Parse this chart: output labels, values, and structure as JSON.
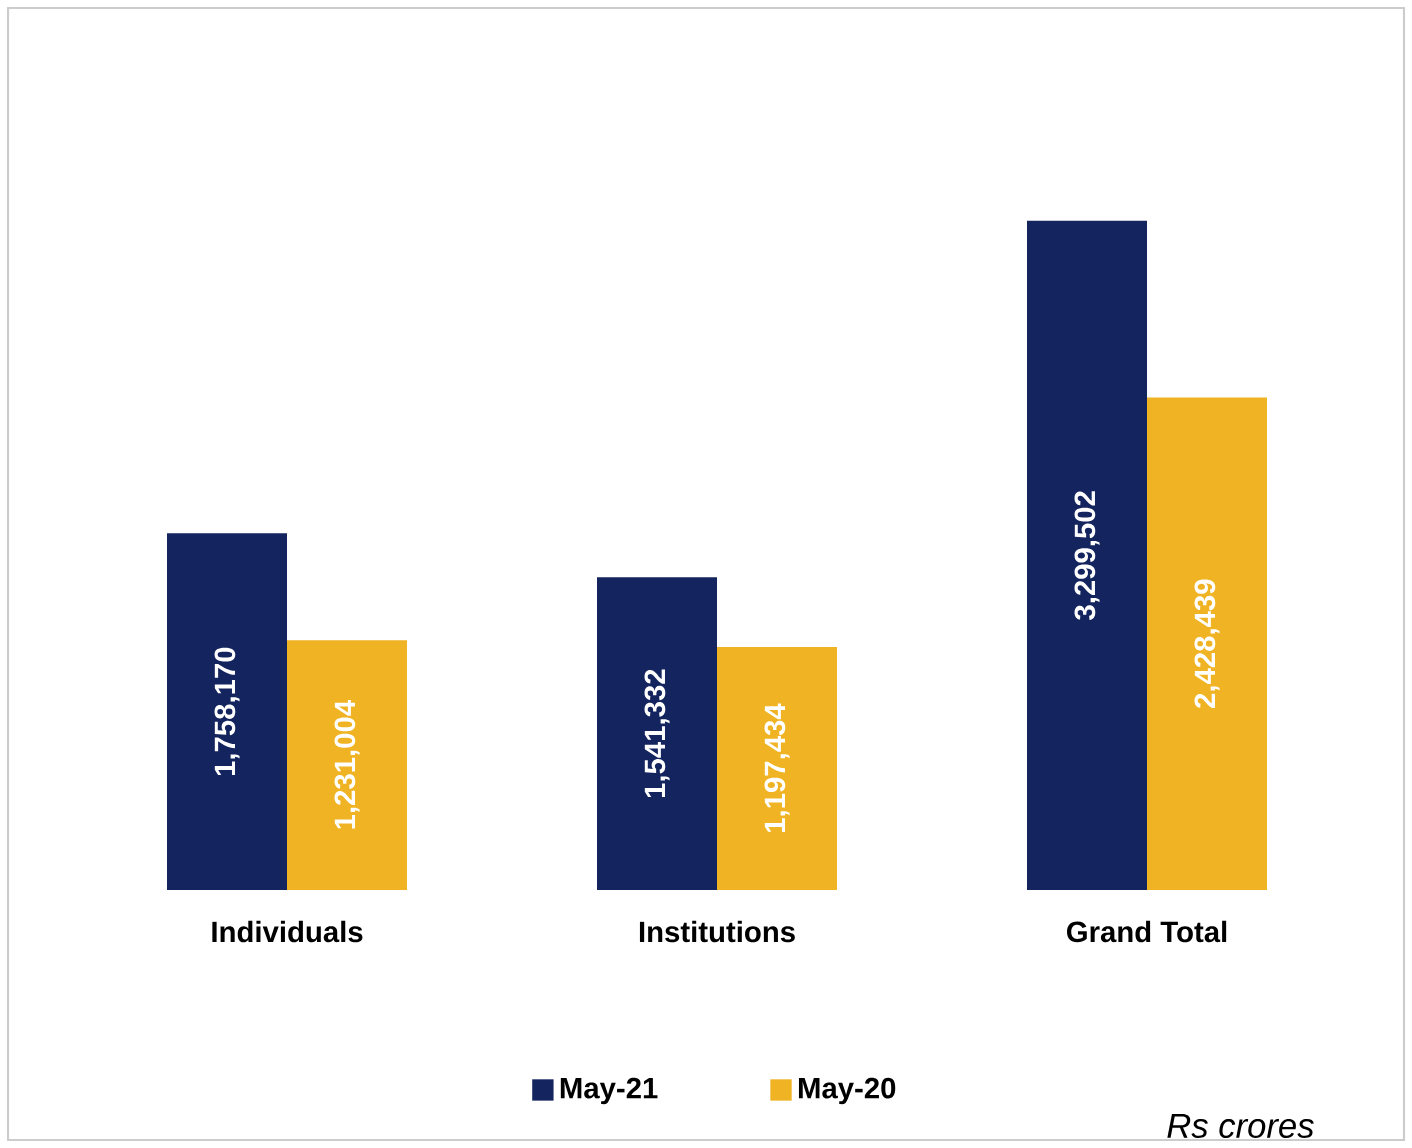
{
  "chart_data": {
    "type": "bar",
    "categories": [
      "Individuals",
      "Institutions",
      "Grand Total"
    ],
    "series": [
      {
        "name": "May-21",
        "color": "#14245e",
        "values": [
          1758170,
          1541332,
          3299502
        ],
        "value_labels": [
          "1,758,170",
          "1,541,332",
          "3,299,502"
        ]
      },
      {
        "name": "May-20",
        "color": "#f0b323",
        "values": [
          1231004,
          1197434,
          2428439
        ],
        "value_labels": [
          "1,231,004",
          "1,197,434",
          "2,428,439"
        ]
      }
    ],
    "legend": "bottom",
    "annotations": [
      "Rs crores"
    ]
  }
}
